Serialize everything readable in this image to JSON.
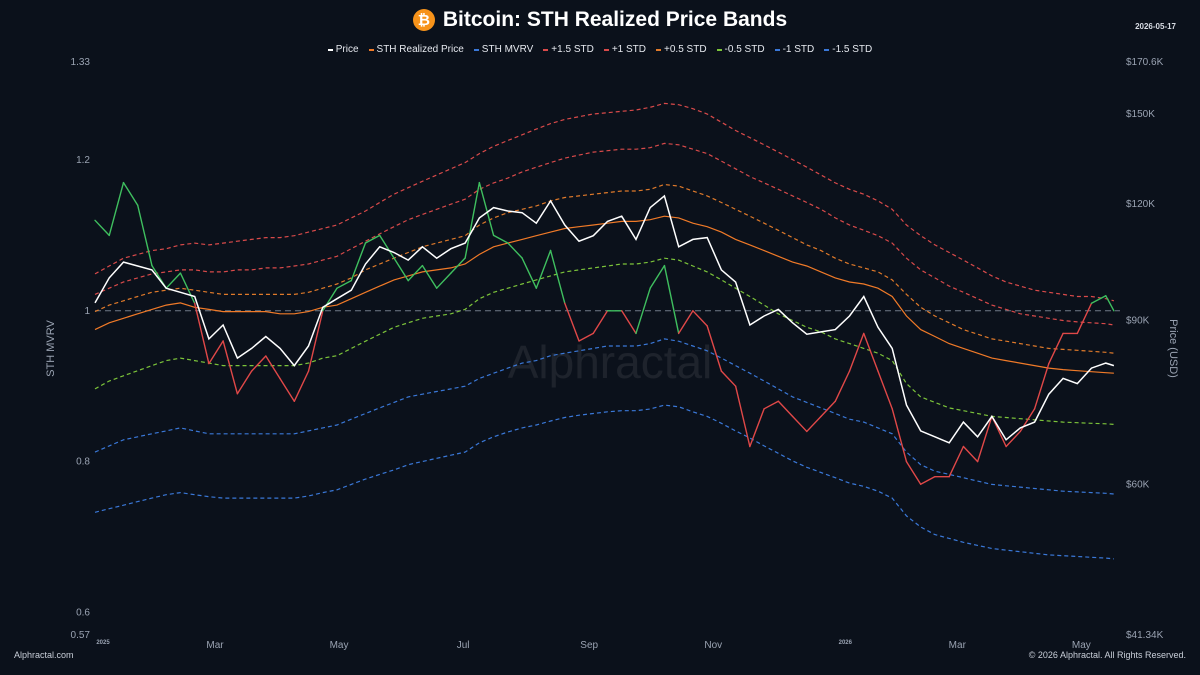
{
  "header": {
    "title": "Bitcoin: STH Realized Price Bands",
    "date": "2026-05-17",
    "coin_symbol": "₿"
  },
  "footer": {
    "site": "Alphractal.com",
    "copyright": "© 2026 Alphractal. All Rights Reserved."
  },
  "watermark": "Alphractal",
  "colors": {
    "background": "#0b111b",
    "price": "#ffffff",
    "mvrv_high": "#3fbf5f",
    "mvrv_mid": "#e04848",
    "sth_realized": "#f07a28",
    "plus15": "#d94a4a",
    "plus1": "#d94a4a",
    "plus05": "#e07a2a",
    "minus05": "#7cc43a",
    "minus1": "#3a78d8",
    "minus15": "#3a78d8",
    "reference": "#8a93a3"
  },
  "chart_data": {
    "type": "line",
    "title": "Bitcoin: STH Realized Price Bands",
    "x_dates": [
      "2025-01-01",
      "2025-01-08",
      "2025-01-15",
      "2025-01-22",
      "2025-01-29",
      "2025-02-05",
      "2025-02-12",
      "2025-02-19",
      "2025-02-26",
      "2025-03-05",
      "2025-03-12",
      "2025-03-19",
      "2025-03-26",
      "2025-04-02",
      "2025-04-09",
      "2025-04-16",
      "2025-04-23",
      "2025-04-30",
      "2025-05-07",
      "2025-05-14",
      "2025-05-21",
      "2025-05-28",
      "2025-06-04",
      "2025-06-11",
      "2025-06-18",
      "2025-06-25",
      "2025-07-02",
      "2025-07-09",
      "2025-07-16",
      "2025-07-23",
      "2025-07-30",
      "2025-08-06",
      "2025-08-13",
      "2025-08-20",
      "2025-08-27",
      "2025-09-03",
      "2025-09-10",
      "2025-09-17",
      "2025-09-24",
      "2025-10-01",
      "2025-10-08",
      "2025-10-15",
      "2025-10-22",
      "2025-10-29",
      "2025-11-05",
      "2025-11-12",
      "2025-11-19",
      "2025-11-26",
      "2025-12-03",
      "2025-12-10",
      "2025-12-17",
      "2025-12-24",
      "2025-12-31",
      "2026-01-07",
      "2026-01-14",
      "2026-01-21",
      "2026-01-28",
      "2026-02-04",
      "2026-02-11",
      "2026-02-18",
      "2026-02-25",
      "2026-03-04",
      "2026-03-11",
      "2026-03-18",
      "2026-03-25",
      "2026-04-01",
      "2026-04-08",
      "2026-04-15",
      "2026-04-22",
      "2026-04-29",
      "2026-05-06",
      "2026-05-13",
      "2026-05-17"
    ],
    "x_axis": {
      "ticks": [
        "Mar",
        "May",
        "Jul",
        "Sep",
        "Nov",
        "Mar",
        "May"
      ],
      "tick_dates": [
        "2025-03-01",
        "2025-05-01",
        "2025-07-01",
        "2025-09-01",
        "2025-11-01",
        "2026-03-01",
        "2026-05-01"
      ],
      "year_ticks": [
        "2025",
        "2026"
      ],
      "year_tick_dates": [
        "2025-01-01",
        "2026-01-01"
      ]
    },
    "left_axis": {
      "label": "STH MVRV",
      "range": [
        0.57,
        1.33
      ],
      "ticks": [
        "1.33",
        "1.2",
        "1",
        "0.8",
        "0.6",
        "0.57"
      ],
      "tick_values": [
        1.33,
        1.2,
        1.0,
        0.8,
        0.6,
        0.57
      ],
      "reference_line": 1.0
    },
    "right_axis": {
      "label": "Price (USD)",
      "scale": "log",
      "range": [
        41340,
        170600
      ],
      "ticks": [
        "$170.6K",
        "$150K",
        "$120K",
        "$90K",
        "$60K",
        "$41.34K"
      ],
      "tick_values": [
        170600,
        150000,
        120000,
        90000,
        60000,
        41340
      ]
    },
    "legend": {
      "placement": "top-center",
      "items": [
        "Price",
        "STH Realized Price",
        "STH MVRV",
        "+1.5 STD",
        "+1 STD",
        "+0.5 STD",
        "-0.5 STD",
        "-1 STD",
        "-1.5 STD"
      ]
    },
    "series": [
      {
        "name": "Price",
        "axis": "right",
        "values": [
          94000,
          100000,
          104000,
          103000,
          102000,
          97500,
          96500,
          95500,
          86000,
          89000,
          82000,
          84000,
          86500,
          84000,
          80500,
          84500,
          93000,
          95000,
          97000,
          103500,
          108000,
          106500,
          104500,
          108000,
          105000,
          107500,
          109000,
          116000,
          119000,
          118000,
          117500,
          114500,
          121000,
          114000,
          109500,
          111000,
          115000,
          116500,
          110000,
          119000,
          122500,
          108000,
          110000,
          110500,
          102000,
          99000,
          89000,
          91000,
          92500,
          89500,
          87000,
          87500,
          88000,
          91000,
          95500,
          88500,
          84000,
          73000,
          68500,
          67500,
          66500,
          70000,
          67500,
          71000,
          67000,
          69000,
          70000,
          75000,
          78000,
          77000,
          80000,
          81000,
          80500
        ]
      },
      {
        "name": "STH Realized Price",
        "axis": "right",
        "values": [
          88000,
          89500,
          90500,
          91500,
          92500,
          93500,
          94000,
          93000,
          92500,
          92000,
          92000,
          92000,
          92000,
          91500,
          91500,
          92000,
          93000,
          93500,
          95000,
          96500,
          98000,
          99500,
          100500,
          101500,
          102000,
          102500,
          103500,
          106000,
          108000,
          109000,
          110000,
          111000,
          112000,
          113000,
          113500,
          114000,
          114500,
          115000,
          115000,
          115500,
          116500,
          116000,
          114500,
          113500,
          112000,
          110000,
          108500,
          107000,
          105500,
          104000,
          103000,
          101500,
          100000,
          99000,
          98500,
          97500,
          95500,
          91000,
          88000,
          86500,
          85000,
          84000,
          83000,
          82000,
          81500,
          81000,
          80500,
          80000,
          79700,
          79500,
          79300,
          79100,
          79000
        ]
      },
      {
        "name": "STH MVRV",
        "axis": "left",
        "values": [
          1.12,
          1.1,
          1.17,
          1.14,
          1.06,
          1.03,
          1.05,
          1.01,
          0.93,
          0.96,
          0.89,
          0.92,
          0.94,
          0.91,
          0.88,
          0.92,
          1.0,
          1.03,
          1.04,
          1.09,
          1.1,
          1.07,
          1.04,
          1.06,
          1.03,
          1.05,
          1.07,
          1.17,
          1.1,
          1.09,
          1.07,
          1.03,
          1.08,
          1.01,
          0.96,
          0.97,
          1.0,
          1.0,
          0.97,
          1.03,
          1.06,
          0.97,
          1.0,
          0.98,
          0.92,
          0.9,
          0.82,
          0.87,
          0.88,
          0.86,
          0.84,
          0.86,
          0.88,
          0.92,
          0.97,
          0.92,
          0.87,
          0.8,
          0.77,
          0.78,
          0.78,
          0.82,
          0.8,
          0.86,
          0.82,
          0.84,
          0.87,
          0.93,
          0.97,
          0.97,
          1.01,
          1.02,
          1.0
        ]
      },
      {
        "name": "+1.5 STD",
        "axis": "right",
        "values": [
          101000,
          103000,
          105000,
          106000,
          107000,
          107500,
          108500,
          109000,
          108500,
          109000,
          109500,
          110000,
          110500,
          110500,
          111000,
          112000,
          113000,
          114000,
          116000,
          118000,
          120500,
          123000,
          125000,
          127000,
          129000,
          131000,
          133000,
          136000,
          138500,
          140500,
          142500,
          144500,
          146500,
          148000,
          149000,
          150000,
          150500,
          151000,
          151500,
          152500,
          154000,
          153500,
          152000,
          150000,
          147000,
          144000,
          141500,
          139000,
          136500,
          134000,
          131500,
          129000,
          126500,
          124500,
          123000,
          121000,
          118500,
          114000,
          111000,
          108500,
          106500,
          104500,
          102500,
          100500,
          99000,
          98000,
          97000,
          96500,
          96000,
          95500,
          95500,
          95000,
          94500
        ]
      },
      {
        "name": "+1 STD",
        "axis": "right",
        "values": [
          96000,
          97500,
          99000,
          100000,
          101000,
          101500,
          102000,
          102000,
          101500,
          101500,
          102000,
          102000,
          102500,
          102500,
          103000,
          103500,
          104500,
          105500,
          107500,
          109500,
          111500,
          113500,
          115500,
          117000,
          118500,
          120000,
          121500,
          124500,
          126500,
          128000,
          130000,
          131500,
          133000,
          134500,
          135500,
          136500,
          137000,
          137500,
          137500,
          138000,
          139500,
          139000,
          137500,
          136000,
          133500,
          131000,
          128500,
          126500,
          124500,
          122500,
          120500,
          118500,
          116000,
          114000,
          112500,
          111000,
          109000,
          105000,
          102000,
          100000,
          98000,
          96500,
          95000,
          93500,
          92500,
          91500,
          91000,
          90500,
          90000,
          89700,
          89500,
          89300,
          89000
        ]
      },
      {
        "name": "+0.5 STD",
        "axis": "right",
        "values": [
          92000,
          93500,
          94500,
          95500,
          96500,
          97000,
          97500,
          97000,
          96500,
          96000,
          96000,
          96000,
          96000,
          96000,
          96000,
          96500,
          97500,
          98500,
          100000,
          102000,
          103500,
          105000,
          106500,
          108000,
          109000,
          110000,
          111000,
          114000,
          116000,
          117500,
          118500,
          119500,
          121000,
          122000,
          122500,
          123000,
          123500,
          124000,
          124000,
          124500,
          126000,
          125500,
          124000,
          122500,
          120500,
          118500,
          116500,
          114500,
          112500,
          110500,
          108500,
          107000,
          105000,
          103500,
          102500,
          101500,
          99500,
          96000,
          93000,
          91000,
          89500,
          88000,
          87000,
          86000,
          85500,
          85000,
          84500,
          84000,
          83800,
          83600,
          83400,
          83200,
          83000
        ]
      },
      {
        "name": "-0.5 STD",
        "axis": "right",
        "values": [
          76000,
          77500,
          78500,
          79500,
          80500,
          81500,
          82000,
          81500,
          81000,
          80500,
          80500,
          80500,
          80500,
          80500,
          80500,
          81000,
          82000,
          82500,
          84000,
          85500,
          87000,
          88500,
          89500,
          90500,
          91000,
          91500,
          92500,
          95000,
          96500,
          97500,
          98500,
          99500,
          100500,
          101500,
          102000,
          102500,
          103000,
          103500,
          103500,
          104000,
          105000,
          104500,
          103000,
          101500,
          99500,
          97500,
          95500,
          93500,
          91500,
          90000,
          88500,
          87500,
          86000,
          85000,
          84000,
          83000,
          81500,
          77000,
          74500,
          73500,
          72500,
          72000,
          71500,
          71000,
          70800,
          70600,
          70400,
          70200,
          70000,
          69900,
          69800,
          69700,
          69600
        ]
      },
      {
        "name": "-1 STD",
        "axis": "right",
        "values": [
          65000,
          66000,
          67000,
          67500,
          68000,
          68500,
          69000,
          68500,
          68000,
          68000,
          68000,
          68000,
          68000,
          68000,
          68000,
          68500,
          69000,
          69500,
          70500,
          71500,
          72500,
          73500,
          74500,
          75000,
          75500,
          76000,
          76500,
          78000,
          79000,
          80000,
          81000,
          81500,
          82500,
          83000,
          83500,
          84000,
          84500,
          84500,
          84500,
          85000,
          86000,
          85500,
          84500,
          83500,
          82000,
          80500,
          79000,
          77500,
          76000,
          74500,
          73500,
          72500,
          71500,
          70500,
          70000,
          69000,
          68000,
          65000,
          63000,
          62000,
          61500,
          61000,
          60500,
          60000,
          59800,
          59600,
          59400,
          59200,
          59000,
          58900,
          58800,
          58700,
          58600
        ]
      },
      {
        "name": "-1.5 STD",
        "axis": "right",
        "values": [
          56000,
          56500,
          57000,
          57500,
          58000,
          58500,
          58800,
          58500,
          58200,
          58000,
          58000,
          58000,
          58000,
          58000,
          58000,
          58300,
          58800,
          59200,
          60000,
          60800,
          61500,
          62200,
          63000,
          63500,
          64000,
          64500,
          65000,
          66500,
          67500,
          68300,
          69000,
          69500,
          70200,
          70800,
          71200,
          71500,
          71800,
          72000,
          72000,
          72300,
          73000,
          72700,
          71800,
          71000,
          69800,
          68500,
          67300,
          66000,
          64800,
          63600,
          62600,
          61800,
          61000,
          60200,
          59700,
          59000,
          58000,
          55500,
          54000,
          53000,
          52500,
          52000,
          51600,
          51200,
          51000,
          50800,
          50600,
          50400,
          50300,
          50200,
          50100,
          50000,
          49900
        ]
      }
    ]
  }
}
